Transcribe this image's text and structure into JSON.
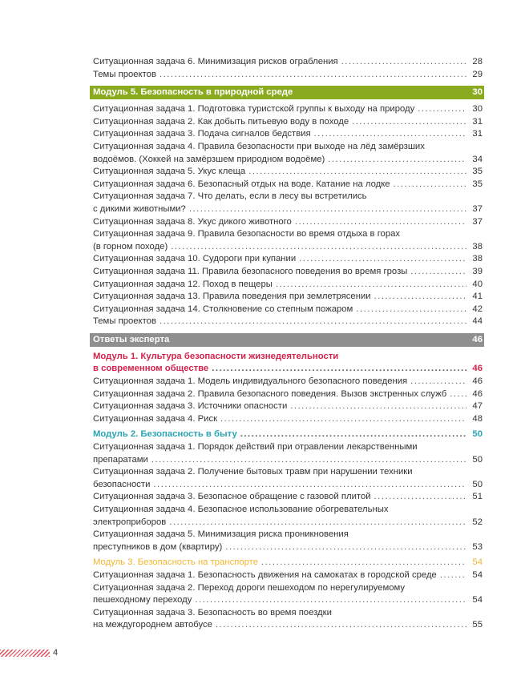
{
  "colors": {
    "green": "#8aab1f",
    "gray": "#8f8f8f",
    "red": "#d4244c",
    "teal": "#2aa5b3",
    "yellow": "#f2b630"
  },
  "entries": [
    {
      "kind": "item",
      "lines": [
        "Ситуационная задача 6. Минимизация рисков ограбления"
      ],
      "page": "28"
    },
    {
      "kind": "item",
      "lines": [
        "Темы проектов"
      ],
      "page": "29"
    },
    {
      "kind": "band",
      "color": "green",
      "lines": [
        "Модуль 5. Безопасность в природной среде"
      ],
      "page": "30"
    },
    {
      "kind": "item",
      "lines": [
        "Ситуационная задача 1. Подготовка туристской группы к выходу на природу"
      ],
      "page": "30"
    },
    {
      "kind": "item",
      "lines": [
        "Ситуационная задача 2. Как добыть питьевую воду в походе"
      ],
      "page": "31"
    },
    {
      "kind": "item",
      "lines": [
        "Ситуационная задача 3. Подача сигналов бедствия"
      ],
      "page": "31"
    },
    {
      "kind": "item",
      "lines": [
        "Ситуационная задача 4. Правила безопасности при выходе на лёд замёрзших",
        "водоёмов. (Хоккей на замёрзшем природном водоёме)"
      ],
      "page": "34"
    },
    {
      "kind": "item",
      "lines": [
        "Ситуационная задача 5. Укус клеща"
      ],
      "page": "35"
    },
    {
      "kind": "item",
      "lines": [
        "Ситуационная задача 6. Безопасный отдых на воде. Катание на лодке"
      ],
      "page": "35"
    },
    {
      "kind": "item",
      "lines": [
        "Ситуационная задача 7. Что делать, если в лесу вы встретились",
        "с дикими животными?"
      ],
      "page": "37"
    },
    {
      "kind": "item",
      "lines": [
        "Ситуационная задача 8. Укус дикого животного"
      ],
      "page": "37"
    },
    {
      "kind": "item",
      "lines": [
        "Ситуационная задача 9. Правила безопасности во время отдыха в горах",
        "(в горном походе)"
      ],
      "page": "38"
    },
    {
      "kind": "item",
      "lines": [
        "Ситуационная задача 10. Судороги при купании"
      ],
      "page": "38"
    },
    {
      "kind": "item",
      "lines": [
        "Ситуационная задача 11. Правила безопасного поведения во время грозы"
      ],
      "page": "39"
    },
    {
      "kind": "item",
      "lines": [
        "Ситуационная задача 12. Поход в пещеры"
      ],
      "page": "40"
    },
    {
      "kind": "item",
      "lines": [
        "Ситуационная задача 13. Правила поведения при землетрясении"
      ],
      "page": "41"
    },
    {
      "kind": "item",
      "lines": [
        "Ситуационная задача 14. Столкновение со степным пожаром"
      ],
      "page": "42"
    },
    {
      "kind": "item",
      "lines": [
        "Темы проектов"
      ],
      "page": "44"
    },
    {
      "kind": "band",
      "color": "gray",
      "lines": [
        "Ответы эксперта"
      ],
      "page": "46"
    },
    {
      "kind": "module",
      "color": "red",
      "lines": [
        "Модуль 1. Культура безопасности жизнедеятельности",
        "в современном обществе"
      ],
      "page": "46"
    },
    {
      "kind": "item",
      "lines": [
        "Ситуационная задача 1. Модель индивидуального безопасного поведения"
      ],
      "page": "46"
    },
    {
      "kind": "item",
      "lines": [
        "Ситуационная задача 2. Правила безопасного поведения. Вызов экстренных служб"
      ],
      "page": "46"
    },
    {
      "kind": "item",
      "lines": [
        "Ситуационная задача 3. Источники опасности"
      ],
      "page": "47"
    },
    {
      "kind": "item",
      "lines": [
        "Ситуационная задача 4. Риск"
      ],
      "page": "48"
    },
    {
      "kind": "module",
      "color": "teal",
      "lines": [
        "Модуль 2. Безопасность в быту"
      ],
      "page": "50"
    },
    {
      "kind": "item",
      "lines": [
        "Ситуационная задача 1. Порядок действий при отравлении лекарственными",
        "препаратами"
      ],
      "page": "50"
    },
    {
      "kind": "item",
      "lines": [
        "Ситуационная задача 2. Получение бытовых травм при нарушении техники",
        "безопасности"
      ],
      "page": "50"
    },
    {
      "kind": "item",
      "lines": [
        "Ситуационная задача 3. Безопасное обращение с газовой плитой"
      ],
      "page": "51"
    },
    {
      "kind": "item",
      "lines": [
        "Ситуационная задача 4. Безопасное использование обогревательных",
        "электроприборов"
      ],
      "page": "52"
    },
    {
      "kind": "item",
      "lines": [
        "Ситуационная задача 5. Минимизация риска проникновения",
        "преступников в дом (квартиру)"
      ],
      "page": "53"
    },
    {
      "kind": "module-light",
      "color": "yellow",
      "lines": [
        "Модуль 3. Безопасность на транспорте"
      ],
      "page": "54"
    },
    {
      "kind": "item",
      "lines": [
        "Ситуационная задача 1. Безопасность движения на самокатах в городской среде"
      ],
      "page": "54"
    },
    {
      "kind": "item",
      "lines": [
        "Ситуационная задача 2. Переход дороги пешеходом по нерегулируемому",
        "пешеходному переходу"
      ],
      "page": "54"
    },
    {
      "kind": "item",
      "lines": [
        "Ситуационная задача 3. Безопасность во время поездки",
        "на междугороднем автобусе"
      ],
      "page": "55"
    }
  ],
  "footer": {
    "page_number": "4"
  }
}
